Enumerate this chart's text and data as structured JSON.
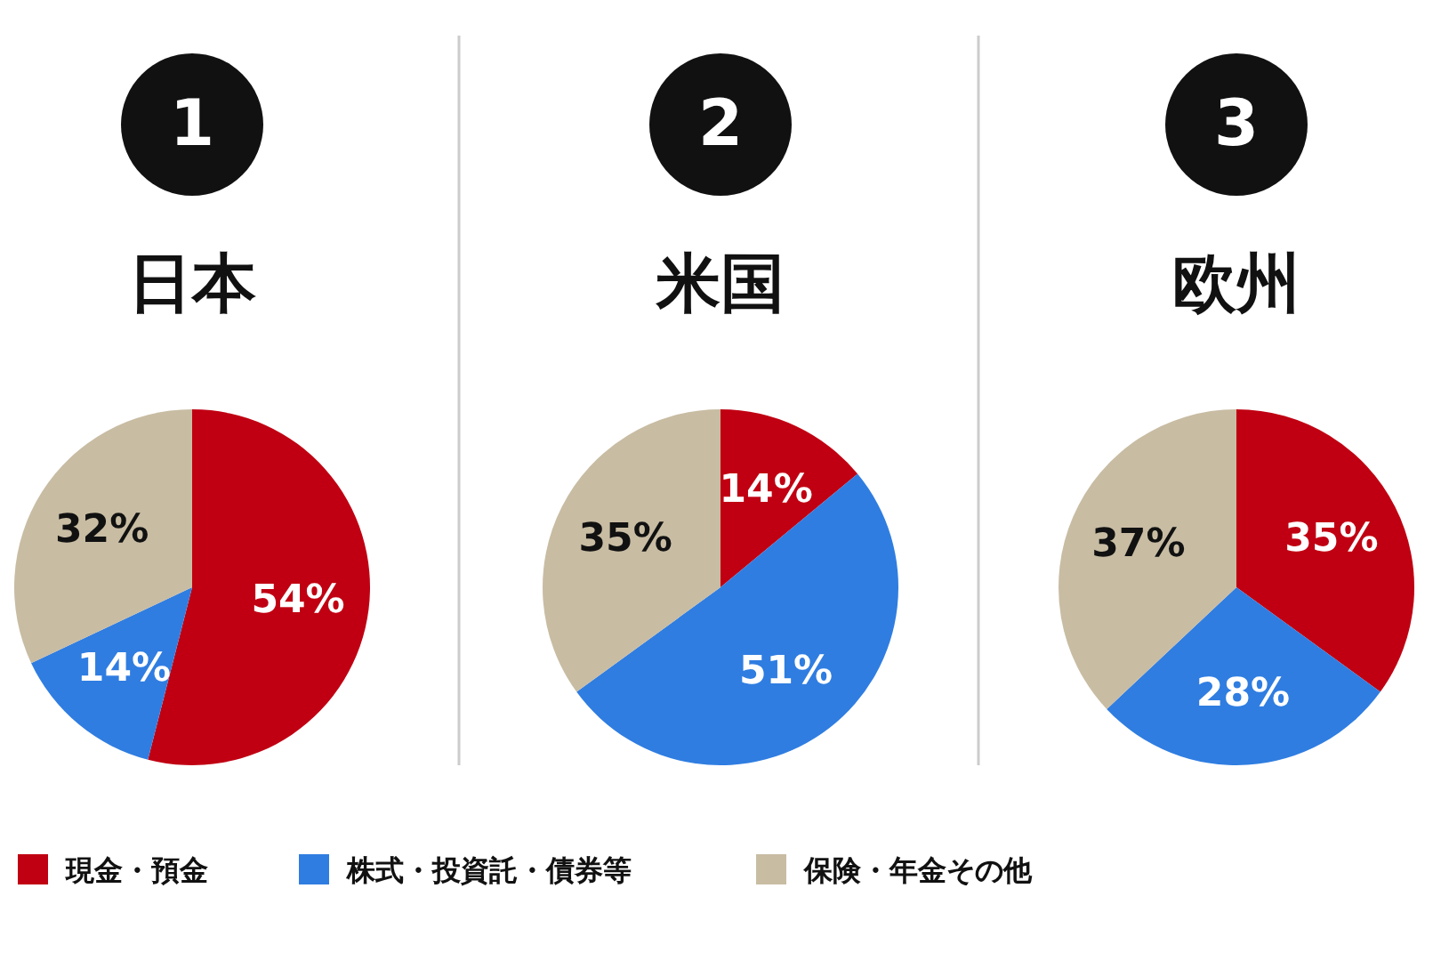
{
  "chart_data": [
    {
      "type": "pie",
      "title": "日本",
      "annotations": [
        "1"
      ],
      "categories": [
        "現金・預金",
        "株式・投資託・債券等",
        "保険・年金その他"
      ],
      "values": [
        54,
        14,
        32
      ],
      "colors": [
        "#c00012",
        "#2f7de1",
        "#c8bca3"
      ],
      "value_labels": [
        "54%",
        "14%",
        "32%"
      ],
      "legend": "bottom"
    },
    {
      "type": "pie",
      "title": "米国",
      "annotations": [
        "2"
      ],
      "categories": [
        null,
        null,
        null
      ],
      "values": [
        14,
        51,
        35
      ],
      "colors": [
        "#c00012",
        "#2f7de1",
        "#c8bca3"
      ],
      "value_labels": [
        "14%",
        "51%",
        "35%"
      ]
    },
    {
      "type": "pie",
      "title": "欧州",
      "annotations": [
        "3"
      ],
      "categories": [
        null,
        null,
        null
      ],
      "values": [
        35,
        28,
        37
      ],
      "colors": [
        "#c00012",
        "#2f7de1",
        "#c8bca3"
      ],
      "value_labels": [
        "35%",
        "28%",
        "37%"
      ]
    }
  ]
}
